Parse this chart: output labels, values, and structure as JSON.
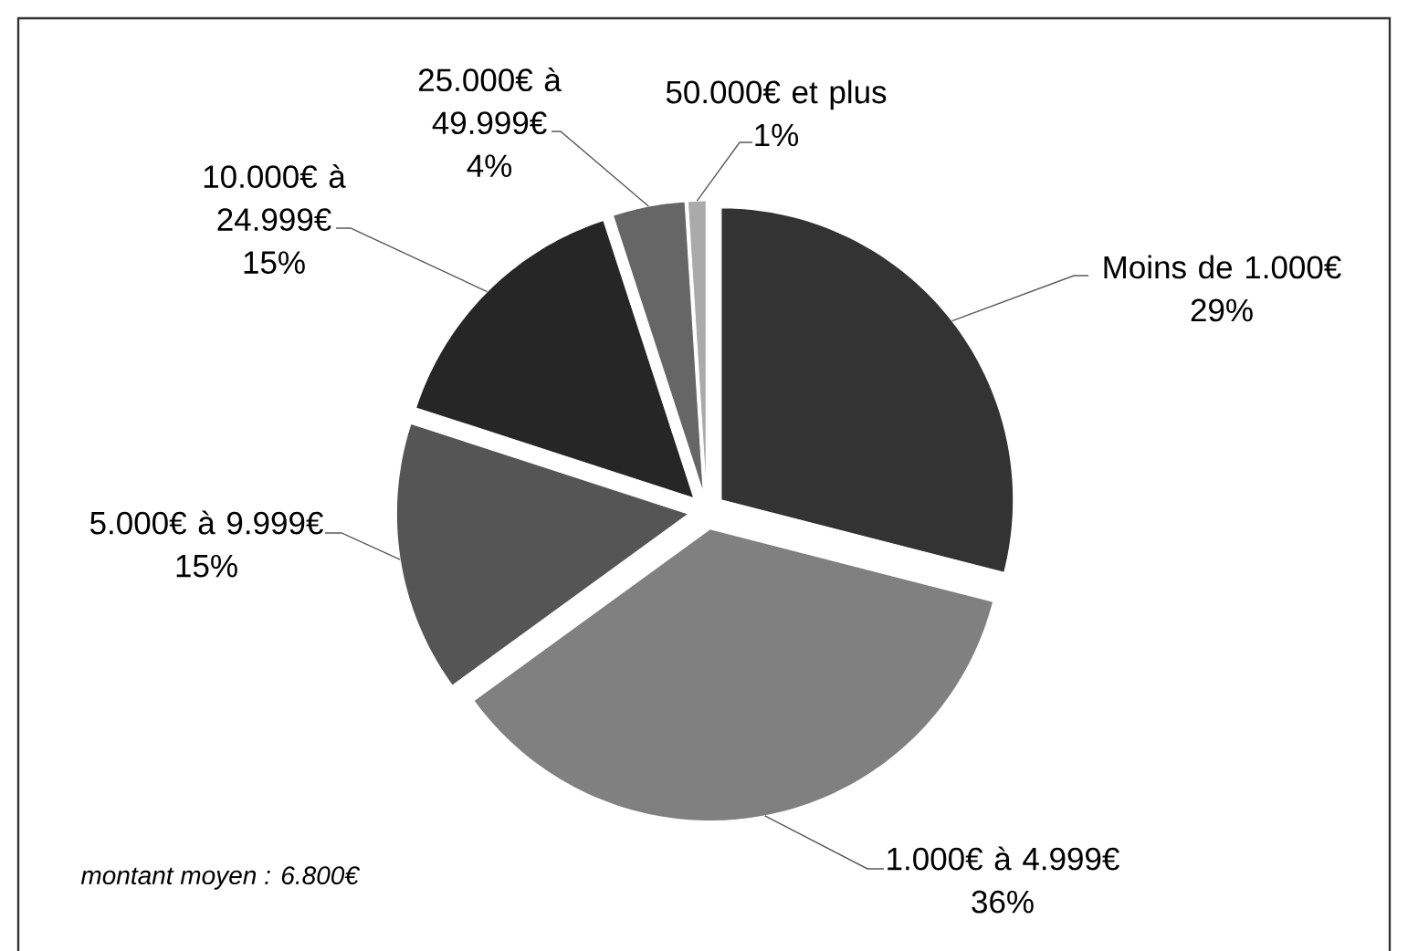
{
  "chart_data": {
    "type": "pie",
    "categories": [
      "Moins de 1.000€",
      "1.000€ à 4.999€",
      "5.000€ à 9.999€",
      "10.000€ à 24.999€",
      "25.000€ à 49.999€",
      "50.000€ et plus"
    ],
    "values": [
      29,
      36,
      15,
      15,
      4,
      1
    ],
    "value_labels": [
      "29%",
      "36%",
      "15%",
      "15%",
      "4%",
      "1%"
    ],
    "colors": [
      "#333333",
      "#808080",
      "#555555",
      "#262626",
      "#666666",
      "#aaaaaa"
    ],
    "annotations": [
      "montant moyen : 6.800€"
    ]
  }
}
